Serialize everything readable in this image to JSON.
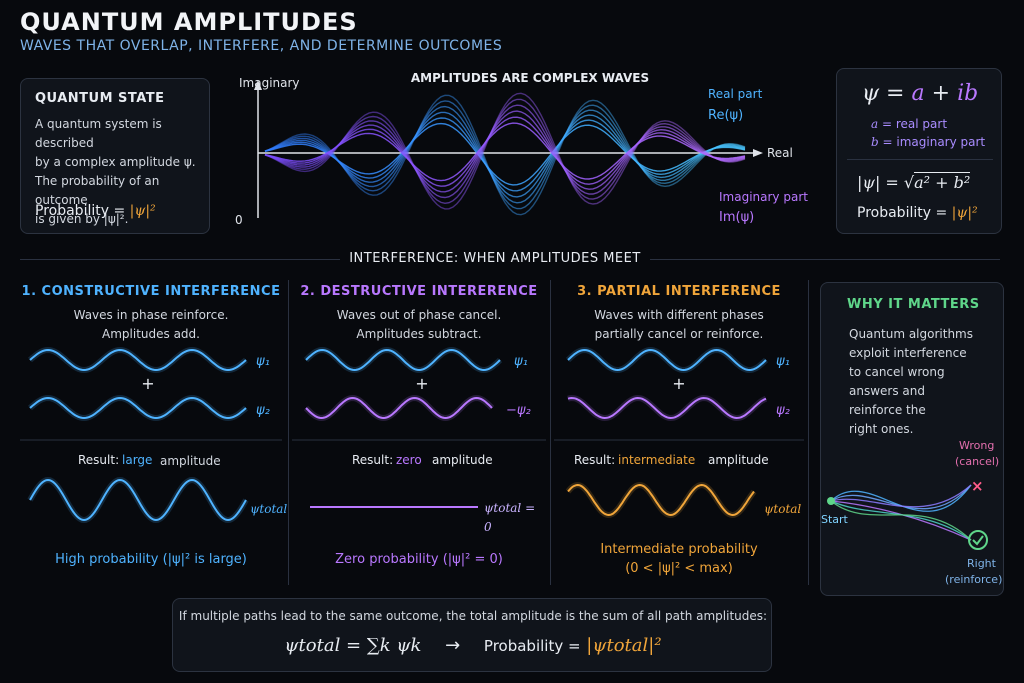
{
  "header": {
    "title": "QUANTUM AMPLITUDES",
    "subtitle": "WAVES THAT OVERLAP, INTERFERE, AND DETERMINE OUTCOMES"
  },
  "state_panel": {
    "heading": "QUANTUM STATE",
    "line1": "A quantum system is described",
    "line2": "by a complex amplitude ψ.",
    "line3": "The probability of an outcome",
    "line4": "is given by |ψ|².",
    "prob_label": "Probability =",
    "prob_formula": "|ψ|²"
  },
  "complex_wave": {
    "title": "AMPLITUDES ARE COMPLEX WAVES",
    "axis_imag": "Imaginary",
    "axis_real": "Real",
    "origin": "0",
    "real_label": "Real part",
    "real_sym": "Re(ψ)",
    "imag_label": "Imaginary part",
    "imag_sym": "Im(ψ)"
  },
  "formula_panel": {
    "psi_eq_lhs": "ψ =",
    "psi_a": "a",
    "psi_plus": "+",
    "psi_ib": "ib",
    "a_def_sym": "a",
    "a_def": "= real part",
    "b_def_sym": "b",
    "b_def": "= imaginary part",
    "modulus_lhs": "|ψ| =",
    "modulus_rhs": "a² + b²",
    "prob_label": "Probability =",
    "prob_formula": "|ψ|²"
  },
  "interference": {
    "title": "INTERFERENCE: WHEN AMPLITUDES MEET",
    "columns": [
      {
        "heading": "1. CONSTRUCTIVE INTERFERENCE",
        "desc1": "Waves in phase reinforce.",
        "desc2": "Amplitudes add.",
        "psi1": "ψ₁",
        "psi2": "ψ₂",
        "plus": "+",
        "result_prefix": "Result:",
        "result_word": "large",
        "result_suffix": "amplitude",
        "total": "ψtotal",
        "prob1": "High probability (|ψ|² is large)",
        "prob2": ""
      },
      {
        "heading": "2. DESTRUCTIVE INTERERENCE",
        "desc1": "Waves out of phase cancel.",
        "desc2": "Amplitudes subtract.",
        "psi1": "ψ₁",
        "psi2": "−ψ₂",
        "plus": "+",
        "result_prefix": "Result:",
        "result_word": "zero",
        "result_suffix": "amplitude",
        "total": "ψtotal = 0",
        "prob1": "Zero probability (|ψ|² = 0)",
        "prob2": ""
      },
      {
        "heading": "3. PARTIAL INTERFERENCE",
        "desc1": "Waves with different phases",
        "desc2": "partially cancel or reinforce.",
        "psi1": "ψ₁",
        "psi2": "ψ₂",
        "plus": "+",
        "result_prefix": "Result:",
        "result_word": "intermediate",
        "result_suffix": "amplitude",
        "total": "ψtotal",
        "prob1": "Intermediate probability",
        "prob2": "(0 < |ψ|² < max)"
      }
    ]
  },
  "why_panel": {
    "heading": "WHY IT MATTERS",
    "l1": "Quantum algorithms",
    "l2": "exploit interference",
    "l3": "to cancel wrong",
    "l4": "answers and",
    "l5": "reinforce the",
    "l6": "right ones.",
    "wrong1": "Wrong",
    "wrong2": "(cancel)",
    "start": "Start",
    "right1": "Right",
    "right2": "(reinforce)"
  },
  "footer": {
    "line": "If multiple paths lead to the same outcome, the total amplitude is the sum of all path amplitudes:",
    "sum_formula": "ψtotal = ∑k ψk",
    "arrow": "→",
    "prob_label": "Probability =",
    "prob_formula": "|ψtotal|²"
  },
  "colors": {
    "blue": "#4fb3ff",
    "purple": "#b978ff",
    "orange": "#f0a53a",
    "green": "#5fd68a"
  }
}
